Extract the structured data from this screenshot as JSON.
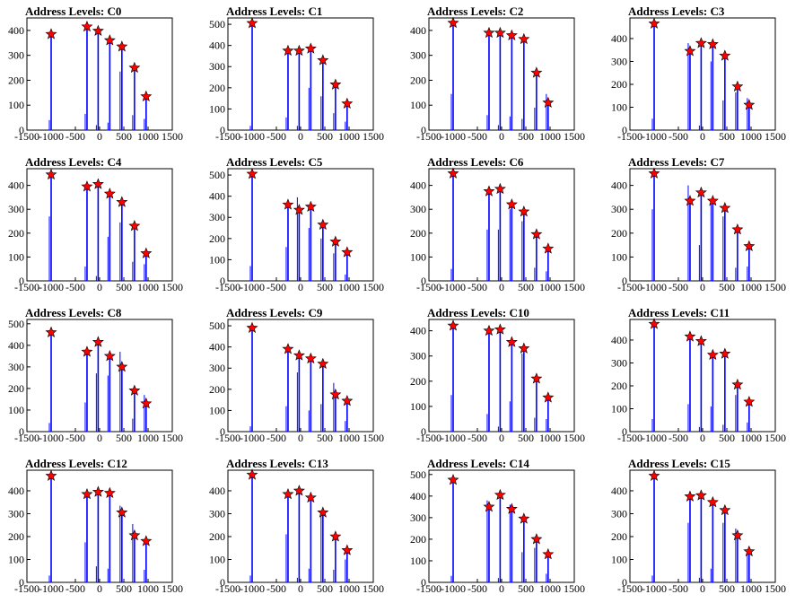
{
  "colors": {
    "bar": "#0000ff",
    "marker_fill": "#ff0000",
    "marker_edge": "#000000",
    "axis": "#000000"
  },
  "marker_icon": "star-icon",
  "chart_data": [
    {
      "title": "Address Levels: C0",
      "type": "bar",
      "xlim": [
        -1500,
        1500
      ],
      "ylim": [
        0,
        450
      ],
      "yticks": [
        0,
        100,
        200,
        300,
        400
      ],
      "xticks": [
        -1500,
        -1000,
        -500,
        0,
        500,
        1000,
        1500
      ],
      "grid": false,
      "x": [
        -1000,
        -260,
        -30,
        210,
        460,
        720,
        960
      ],
      "values": [
        385,
        415,
        398,
        360,
        335,
        250,
        135
      ],
      "minor_values": [
        40,
        65,
        20,
        30,
        235,
        60,
        45
      ]
    },
    {
      "title": "Address Levels: C1",
      "type": "bar",
      "xlim": [
        -1500,
        1500
      ],
      "ylim": [
        0,
        530
      ],
      "yticks": [
        0,
        100,
        200,
        300,
        400,
        500
      ],
      "xticks": [
        -1500,
        -1000,
        -500,
        0,
        500,
        1000,
        1500
      ],
      "grid": false,
      "x": [
        -1000,
        -260,
        -30,
        210,
        460,
        720,
        960
      ],
      "values": [
        505,
        375,
        375,
        385,
        330,
        215,
        125
      ],
      "minor_values": [
        20,
        60,
        20,
        200,
        160,
        80,
        40
      ]
    },
    {
      "title": "Address Levels: C2",
      "type": "bar",
      "xlim": [
        -1500,
        1500
      ],
      "ylim": [
        0,
        450
      ],
      "yticks": [
        0,
        100,
        200,
        300,
        400
      ],
      "xticks": [
        -1500,
        -1000,
        -500,
        0,
        500,
        1000,
        1500
      ],
      "grid": false,
      "x": [
        -1000,
        -260,
        -30,
        210,
        460,
        720,
        960
      ],
      "values": [
        430,
        390,
        390,
        380,
        365,
        230,
        110
      ],
      "minor_values": [
        145,
        60,
        20,
        55,
        45,
        90,
        145
      ]
    },
    {
      "title": "Address Levels: C3",
      "type": "bar",
      "xlim": [
        -1500,
        1500
      ],
      "ylim": [
        0,
        490
      ],
      "yticks": [
        0,
        100,
        200,
        300,
        400
      ],
      "xticks": [
        -1500,
        -1000,
        -500,
        0,
        500,
        1000,
        1500
      ],
      "grid": false,
      "x": [
        -1000,
        -260,
        -30,
        210,
        460,
        720,
        960
      ],
      "values": [
        465,
        345,
        380,
        375,
        325,
        190,
        110
      ],
      "minor_values": [
        50,
        380,
        20,
        300,
        130,
        165,
        140
      ]
    },
    {
      "title": "Address Levels: C4",
      "type": "bar",
      "xlim": [
        -1500,
        1500
      ],
      "ylim": [
        0,
        470
      ],
      "yticks": [
        0,
        100,
        200,
        300,
        400
      ],
      "xticks": [
        -1500,
        -1000,
        -500,
        0,
        500,
        1000,
        1500
      ],
      "grid": false,
      "x": [
        -1000,
        -260,
        -30,
        210,
        460,
        720,
        960
      ],
      "values": [
        445,
        395,
        405,
        365,
        330,
        230,
        115
      ],
      "minor_values": [
        270,
        60,
        20,
        185,
        245,
        80,
        70
      ]
    },
    {
      "title": "Address Levels: C5",
      "type": "bar",
      "xlim": [
        -1500,
        1500
      ],
      "ylim": [
        0,
        530
      ],
      "yticks": [
        0,
        100,
        200,
        300,
        400,
        500
      ],
      "xticks": [
        -1500,
        -1000,
        -500,
        0,
        500,
        1000,
        1500
      ],
      "grid": false,
      "x": [
        -1000,
        -260,
        -30,
        210,
        460,
        720,
        960
      ],
      "values": [
        505,
        360,
        335,
        350,
        265,
        185,
        135
      ],
      "minor_values": [
        70,
        160,
        395,
        250,
        200,
        130,
        30
      ]
    },
    {
      "title": "Address Levels: C6",
      "type": "bar",
      "xlim": [
        -1500,
        1500
      ],
      "ylim": [
        0,
        470
      ],
      "yticks": [
        0,
        100,
        200,
        300,
        400
      ],
      "xticks": [
        -1500,
        -1000,
        -500,
        0,
        500,
        1000,
        1500
      ],
      "grid": false,
      "x": [
        -1000,
        -260,
        -30,
        210,
        460,
        720,
        960
      ],
      "values": [
        450,
        375,
        385,
        320,
        290,
        195,
        135
      ],
      "minor_values": [
        50,
        215,
        215,
        300,
        250,
        55,
        40
      ]
    },
    {
      "title": "Address Levels: C7",
      "type": "bar",
      "xlim": [
        -1500,
        1500
      ],
      "ylim": [
        0,
        470
      ],
      "yticks": [
        0,
        100,
        200,
        300,
        400
      ],
      "xticks": [
        -1500,
        -1000,
        -500,
        0,
        500,
        1000,
        1500
      ],
      "grid": false,
      "x": [
        -1000,
        -260,
        -30,
        210,
        460,
        720,
        960
      ],
      "values": [
        450,
        335,
        370,
        335,
        305,
        215,
        145
      ],
      "minor_values": [
        300,
        400,
        150,
        320,
        270,
        55,
        60
      ]
    },
    {
      "title": "Address Levels: C8",
      "type": "bar",
      "xlim": [
        -1500,
        1500
      ],
      "ylim": [
        0,
        520
      ],
      "yticks": [
        0,
        100,
        200,
        300,
        400,
        500
      ],
      "xticks": [
        -1500,
        -1000,
        -500,
        0,
        500,
        1000,
        1500
      ],
      "grid": false,
      "x": [
        -1000,
        -260,
        -30,
        210,
        460,
        720,
        960
      ],
      "values": [
        460,
        370,
        415,
        350,
        300,
        190,
        130
      ],
      "minor_values": [
        40,
        135,
        270,
        260,
        370,
        60,
        170
      ]
    },
    {
      "title": "Address Levels: C9",
      "type": "bar",
      "xlim": [
        -1500,
        1500
      ],
      "ylim": [
        0,
        530
      ],
      "yticks": [
        0,
        100,
        200,
        300,
        400,
        500
      ],
      "xticks": [
        -1500,
        -1000,
        -500,
        0,
        500,
        1000,
        1500
      ],
      "grid": false,
      "x": [
        -1000,
        -260,
        -30,
        210,
        460,
        720,
        960
      ],
      "values": [
        490,
        390,
        360,
        345,
        320,
        175,
        145
      ],
      "minor_values": [
        25,
        120,
        280,
        100,
        130,
        230,
        50
      ]
    },
    {
      "title": "Address Levels: C10",
      "type": "bar",
      "xlim": [
        -1500,
        1500
      ],
      "ylim": [
        0,
        445
      ],
      "yticks": [
        0,
        100,
        200,
        300,
        400
      ],
      "xticks": [
        -1500,
        -1000,
        -500,
        0,
        500,
        1000,
        1500
      ],
      "grid": false,
      "x": [
        -1000,
        -260,
        -30,
        210,
        460,
        720,
        960
      ],
      "values": [
        420,
        400,
        405,
        355,
        330,
        210,
        135
      ],
      "minor_values": [
        145,
        70,
        20,
        120,
        310,
        55,
        50
      ]
    },
    {
      "title": "Address Levels: C11",
      "type": "bar",
      "xlim": [
        -1500,
        1500
      ],
      "ylim": [
        0,
        490
      ],
      "yticks": [
        0,
        100,
        200,
        300,
        400
      ],
      "xticks": [
        -1500,
        -1000,
        -500,
        0,
        500,
        1000,
        1500
      ],
      "grid": false,
      "x": [
        -1000,
        -260,
        -30,
        210,
        460,
        720,
        960
      ],
      "values": [
        470,
        415,
        395,
        335,
        340,
        205,
        130
      ],
      "minor_values": [
        55,
        120,
        20,
        110,
        30,
        160,
        40
      ]
    },
    {
      "title": "Address Levels: C12",
      "type": "bar",
      "xlim": [
        -1500,
        1500
      ],
      "ylim": [
        0,
        490
      ],
      "yticks": [
        0,
        100,
        200,
        300,
        400
      ],
      "xticks": [
        -1500,
        -1000,
        -500,
        0,
        500,
        1000,
        1500
      ],
      "grid": false,
      "x": [
        -1000,
        -260,
        -30,
        210,
        460,
        720,
        960
      ],
      "values": [
        465,
        385,
        395,
        390,
        305,
        205,
        180
      ],
      "minor_values": [
        30,
        175,
        70,
        60,
        335,
        255,
        55
      ]
    },
    {
      "title": "Address Levels: C13",
      "type": "bar",
      "xlim": [
        -1500,
        1500
      ],
      "ylim": [
        0,
        490
      ],
      "yticks": [
        0,
        100,
        200,
        300,
        400
      ],
      "xticks": [
        -1500,
        -1000,
        -500,
        0,
        500,
        1000,
        1500
      ],
      "grid": false,
      "x": [
        -1000,
        -260,
        -30,
        210,
        460,
        720,
        960
      ],
      "values": [
        470,
        385,
        400,
        370,
        305,
        200,
        140
      ],
      "minor_values": [
        30,
        210,
        20,
        60,
        290,
        55,
        100
      ]
    },
    {
      "title": "Address Levels: C14",
      "type": "bar",
      "xlim": [
        -1500,
        1500
      ],
      "ylim": [
        0,
        520
      ],
      "yticks": [
        0,
        100,
        200,
        300,
        400,
        500
      ],
      "xticks": [
        -1500,
        -1000,
        -500,
        0,
        500,
        1000,
        1500
      ],
      "grid": false,
      "x": [
        -1000,
        -260,
        -30,
        210,
        460,
        720,
        960
      ],
      "values": [
        475,
        350,
        405,
        340,
        295,
        200,
        130
      ],
      "minor_values": [
        30,
        380,
        20,
        360,
        140,
        160,
        40
      ]
    },
    {
      "title": "Address Levels: C15",
      "type": "bar",
      "xlim": [
        -1500,
        1500
      ],
      "ylim": [
        0,
        490
      ],
      "yticks": [
        0,
        100,
        200,
        300,
        400
      ],
      "xticks": [
        -1500,
        -1000,
        -500,
        0,
        500,
        1000,
        1500
      ],
      "grid": false,
      "x": [
        -1000,
        -260,
        -30,
        210,
        460,
        720,
        960
      ],
      "values": [
        465,
        375,
        380,
        350,
        315,
        205,
        135
      ],
      "minor_values": [
        30,
        260,
        20,
        60,
        260,
        235,
        120
      ]
    }
  ]
}
